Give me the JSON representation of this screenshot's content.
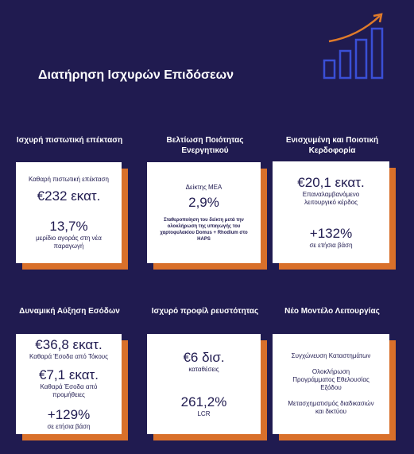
{
  "title": "Διατήρηση Ισχυρών Επιδόσεων",
  "panels": [
    {
      "heading": "Ισχυρή πιστωτική επέκταση",
      "lines": [
        "Καθαρή πιστωτική επέκταση",
        "€232 εκατ.",
        "13,7%",
        "μερίδιο αγοράς στη νέα παραγωγή"
      ]
    },
    {
      "heading": "Βελτίωση Ποιότητας Ενεργητικού",
      "lines": [
        "Δείκτης ΜΕΑ",
        "2,9%",
        "Σταθεροποίηση του δείκτη μετά την ολοκλήρωση της υπαγωγής του χαρτοφυλακίου Domus + Rhodium στο HAPS"
      ]
    },
    {
      "heading": "Ενισχυμένη και Ποιοτική Κερδοφορία",
      "lines": [
        "€20,1 εκατ.",
        "Επαναλαμβανόμενο λειτουργικό κέρδος",
        "+132%",
        "σε ετήσια βάση"
      ]
    },
    {
      "heading": "Δυναμική Αύξηση Εσόδων",
      "lines": [
        "€36,8 εκατ.",
        "Καθαρά Έσοδα από Τόκους",
        "€7,1 εκατ.",
        "Καθαρά Έσοδα από προμήθειες",
        "+129%",
        "σε ετήσια βάση"
      ]
    },
    {
      "heading": "Ισχυρό προφίλ ρευστότητας",
      "lines": [
        "€6 δισ.",
        "καταθέσεις",
        "261,2%",
        "LCR"
      ]
    },
    {
      "heading": "Νέο Μοντέλο Λειτουργίας",
      "lines": [
        "Συγχώνευση Καταστημάτων",
        "Ολοκλήρωση Προγράμματος Εθελουσίας Εξόδου",
        "Μετασχηματισμός διαδικασιών και δικτύου"
      ]
    }
  ]
}
